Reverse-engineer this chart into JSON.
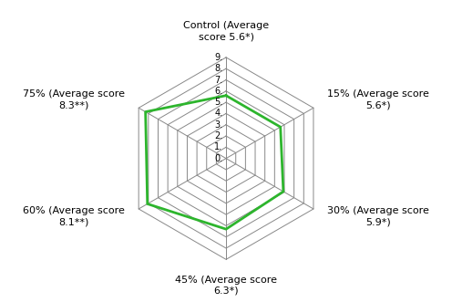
{
  "categories": [
    "Control (Average\nscore 5.6*)",
    "15% (Average score\n5.6*)",
    "30% (Average score\n5.9*)",
    "45% (Average score\n6.3*)",
    "60% (Average score\n8.1**)",
    "75% (Average score\n8.3**)"
  ],
  "values": [
    5.6,
    5.6,
    5.9,
    6.3,
    8.1,
    8.3
  ],
  "rmax": 9,
  "rticks": [
    0,
    1,
    2,
    3,
    4,
    5,
    6,
    7,
    8,
    9
  ],
  "rtick_labels": [
    "0.",
    "1.",
    "2.",
    "3.",
    "4.",
    "5.",
    "6.",
    "7.",
    "8.",
    "9."
  ],
  "line_color": "#2db52d",
  "line_width": 2.0,
  "grid_color": "#888888",
  "bg_color": "#ffffff",
  "label_fontsize": 8.0,
  "tick_fontsize": 7.0,
  "spoke_color": "#888888"
}
